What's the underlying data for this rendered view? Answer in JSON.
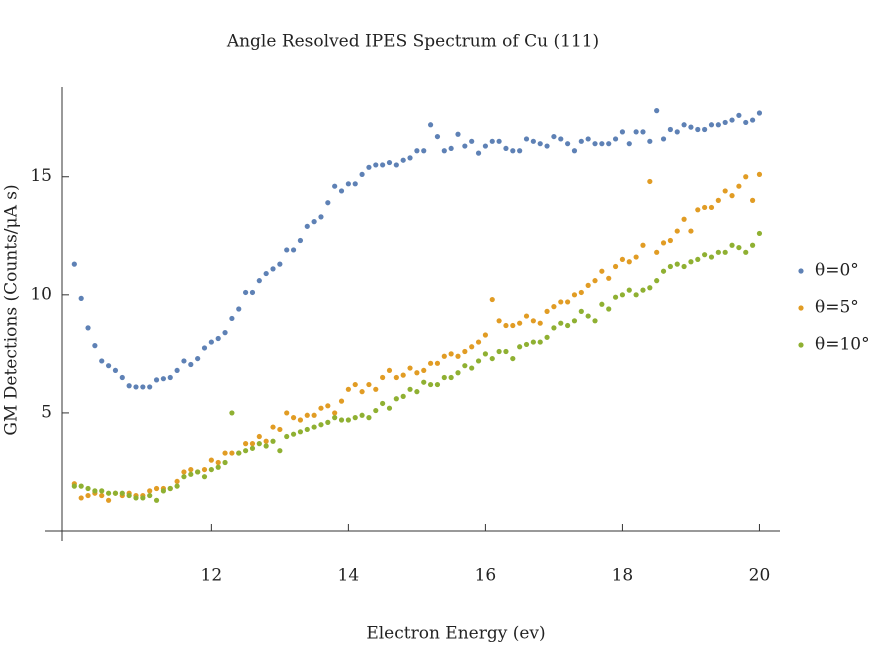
{
  "chart_data": {
    "type": "scatter",
    "title": "Angle Resolved IPES Spectrum of Cu (111)",
    "x_label": "Electron Energy (ev)",
    "y_label": "GM Detections (Counts/μA s)",
    "xlim": [
      9.82,
      20.3
    ],
    "ylim": [
      0,
      18.8
    ],
    "xticks": [
      12,
      14,
      16,
      18,
      20
    ],
    "yticks": [
      5,
      10,
      15
    ],
    "legend": "right",
    "x": [
      10,
      10.1,
      10.2,
      10.3,
      10.4,
      10.5,
      10.6,
      10.7,
      10.8,
      10.9,
      11,
      11.1,
      11.2,
      11.3,
      11.4,
      11.5,
      11.6,
      11.7,
      11.8,
      11.9,
      12,
      12.1,
      12.2,
      12.3,
      12.4,
      12.5,
      12.6,
      12.7,
      12.8,
      12.9,
      13,
      13.1,
      13.2,
      13.3,
      13.4,
      13.5,
      13.6,
      13.7,
      13.8,
      13.9,
      14,
      14.1,
      14.2,
      14.3,
      14.4,
      14.5,
      14.6,
      14.7,
      14.8,
      14.9,
      15,
      15.1,
      15.2,
      15.3,
      15.4,
      15.5,
      15.6,
      15.7,
      15.8,
      15.9,
      16,
      16.1,
      16.2,
      16.3,
      16.4,
      16.5,
      16.6,
      16.7,
      16.8,
      16.9,
      17,
      17.1,
      17.2,
      17.3,
      17.4,
      17.5,
      17.6,
      17.7,
      17.8,
      17.9,
      18,
      18.1,
      18.2,
      18.3,
      18.4,
      18.5,
      18.6,
      18.7,
      18.8,
      18.9,
      19,
      19.1,
      19.2,
      19.3,
      19.4,
      19.5,
      19.6,
      19.7,
      19.8,
      19.9,
      20
    ],
    "series": [
      {
        "name": "θ=0°",
        "color": "#5e81b5",
        "values": [
          11.3,
          9.85,
          8.6,
          7.85,
          7.2,
          7.0,
          6.8,
          6.5,
          6.15,
          6.1,
          6.1,
          6.1,
          6.4,
          6.45,
          6.5,
          6.8,
          7.2,
          7.05,
          7.3,
          7.75,
          8.0,
          8.15,
          8.4,
          9.0,
          9.4,
          10.1,
          10.1,
          10.6,
          10.9,
          11.1,
          11.3,
          11.9,
          11.9,
          12.3,
          12.9,
          13.1,
          13.3,
          13.9,
          14.6,
          14.4,
          14.7,
          14.7,
          15.1,
          15.4,
          15.5,
          15.5,
          15.6,
          15.5,
          15.7,
          15.8,
          16.1,
          16.1,
          17.2,
          16.7,
          16.1,
          16.2,
          16.8,
          16.3,
          16.5,
          16.0,
          16.3,
          16.5,
          16.5,
          16.2,
          16.1,
          16.1,
          16.6,
          16.5,
          16.4,
          16.3,
          16.7,
          16.6,
          16.4,
          16.1,
          16.5,
          16.6,
          16.4,
          16.4,
          16.4,
          16.6,
          16.9,
          16.4,
          16.9,
          16.9,
          16.5,
          17.8,
          16.6,
          17.0,
          16.9,
          17.2,
          17.1,
          17.0,
          17.0,
          17.2,
          17.2,
          17.3,
          17.4,
          17.6,
          17.3,
          17.4,
          17.7
        ]
      },
      {
        "name": "θ=5°",
        "color": "#e19c24",
        "values": [
          2.0,
          1.4,
          1.5,
          1.6,
          1.5,
          1.3,
          1.6,
          1.5,
          1.6,
          1.5,
          1.5,
          1.7,
          1.8,
          1.8,
          1.8,
          2.1,
          2.5,
          2.6,
          2.5,
          2.6,
          3.0,
          2.9,
          3.3,
          3.3,
          3.3,
          3.7,
          3.7,
          4.0,
          3.8,
          4.4,
          4.3,
          5.0,
          4.8,
          4.7,
          4.9,
          4.9,
          5.2,
          5.3,
          5.0,
          5.5,
          6.0,
          6.2,
          5.9,
          6.2,
          6.0,
          6.5,
          6.8,
          6.5,
          6.6,
          6.9,
          6.7,
          6.8,
          7.1,
          7.1,
          7.4,
          7.5,
          7.4,
          7.6,
          7.8,
          8.0,
          8.3,
          9.8,
          8.9,
          8.7,
          8.7,
          8.8,
          9.1,
          8.9,
          8.8,
          9.3,
          9.5,
          9.7,
          9.7,
          10.0,
          10.1,
          10.4,
          10.6,
          11.0,
          10.7,
          11.2,
          11.5,
          11.4,
          11.6,
          12.1,
          14.8,
          11.8,
          12.2,
          12.3,
          12.7,
          13.2,
          12.7,
          13.6,
          13.7,
          13.7,
          14.0,
          14.4,
          14.2,
          14.6,
          15.0,
          14.0,
          15.1
        ]
      },
      {
        "name": "θ=10°",
        "color": "#8fb032",
        "values": [
          1.9,
          1.9,
          1.8,
          1.7,
          1.7,
          1.6,
          1.6,
          1.6,
          1.5,
          1.4,
          1.4,
          1.5,
          1.3,
          1.7,
          1.8,
          1.9,
          2.3,
          2.4,
          2.5,
          2.3,
          2.6,
          2.7,
          2.9,
          5.0,
          3.3,
          3.4,
          3.5,
          3.7,
          3.6,
          3.8,
          3.4,
          4.0,
          4.1,
          4.2,
          4.3,
          4.4,
          4.5,
          4.6,
          4.8,
          4.7,
          4.7,
          4.8,
          4.9,
          4.8,
          5.1,
          5.4,
          5.2,
          5.6,
          5.7,
          6.0,
          5.9,
          6.3,
          6.2,
          6.2,
          6.5,
          6.5,
          6.7,
          7.0,
          6.9,
          7.2,
          7.5,
          7.3,
          7.6,
          7.6,
          7.3,
          7.8,
          7.9,
          8.0,
          8.0,
          8.2,
          8.6,
          8.8,
          8.7,
          8.9,
          9.3,
          9.1,
          8.9,
          9.6,
          9.4,
          9.9,
          10.0,
          10.2,
          10.0,
          10.2,
          10.3,
          10.6,
          11.0,
          11.2,
          11.3,
          11.2,
          11.4,
          11.5,
          11.7,
          11.6,
          11.8,
          11.8,
          12.1,
          12.0,
          11.8,
          12.1,
          12.6
        ]
      }
    ]
  }
}
